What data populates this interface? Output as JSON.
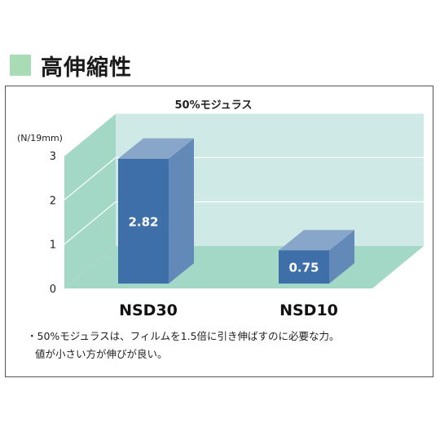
{
  "heading": {
    "title": "高伸縮性"
  },
  "chart_data": {
    "type": "bar",
    "title": "50%モジュラス",
    "ylabel": "(N/19mm)",
    "categories": [
      "NSD30",
      "NSD10"
    ],
    "values": [
      2.82,
      0.75
    ],
    "value_labels": [
      "2.82",
      "0.75"
    ],
    "y_ticks": [
      "0",
      "1",
      "2",
      "3"
    ],
    "ylim": [
      0,
      3
    ],
    "grid": true,
    "bar_color": "#3f6fa8",
    "wall_color": "#cfe9e6",
    "floor_color": "#a3d8c6"
  },
  "notes": [
    "・50%モジュラスは、フィルムを1.5倍に引き伸ばすのに必要な力。",
    "値が小さい方が伸びが良い。"
  ]
}
